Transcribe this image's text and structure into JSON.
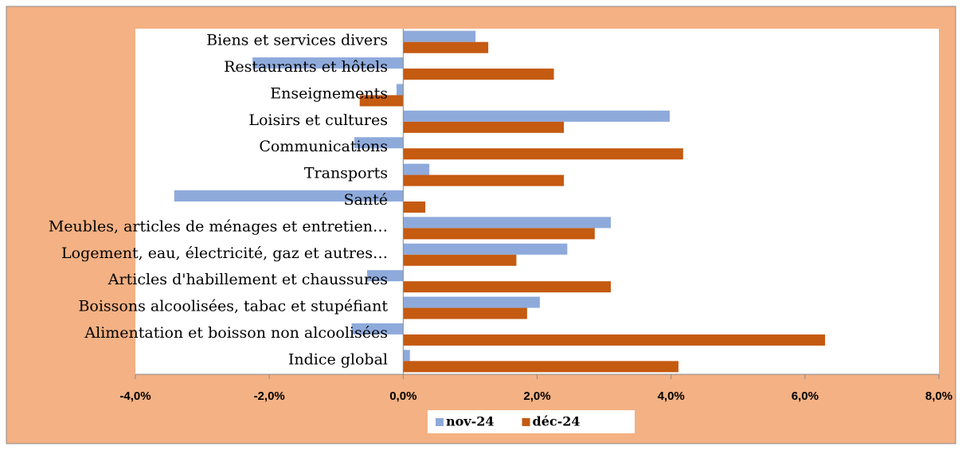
{
  "chart_data": {
    "type": "bar",
    "orientation": "horizontal",
    "categories": [
      "Biens et services divers",
      "Restaurants et hôtels",
      "Enseignements",
      "Loisirs et cultures",
      "Communications",
      "Transports",
      "Santé",
      "Meubles, articles de ménages et entretien…",
      "Logement, eau, électricité, gaz et autres…",
      "Articles d'habillement et chaussures",
      "Boissons alcoolisées, tabac et stupéfiant",
      "Alimentation et boisson non alcoolisées",
      "Indice global"
    ],
    "series": [
      {
        "name": "nov-24",
        "color": "#8eaadb",
        "values": [
          1.08,
          -2.25,
          -0.1,
          3.98,
          -0.73,
          0.39,
          -3.42,
          3.1,
          2.45,
          -0.54,
          2.04,
          -0.77,
          0.1
        ]
      },
      {
        "name": "déc-24",
        "color": "#c55a11",
        "values": [
          1.27,
          2.25,
          -0.65,
          2.4,
          4.18,
          2.4,
          0.33,
          2.86,
          1.69,
          3.1,
          1.85,
          6.3,
          4.11
        ]
      }
    ],
    "xlim": [
      -4,
      8
    ],
    "xticks": [
      {
        "value": -4,
        "label": "-4,0%"
      },
      {
        "value": -2,
        "label": "-2,0%"
      },
      {
        "value": 0,
        "label": "0,0%"
      },
      {
        "value": 2,
        "label": "2,0%"
      },
      {
        "value": 4,
        "label": "4,0%"
      },
      {
        "value": 6,
        "label": "6,0%"
      },
      {
        "value": 8,
        "label": "8,0%"
      }
    ],
    "grid": false,
    "legend": "bottom"
  }
}
